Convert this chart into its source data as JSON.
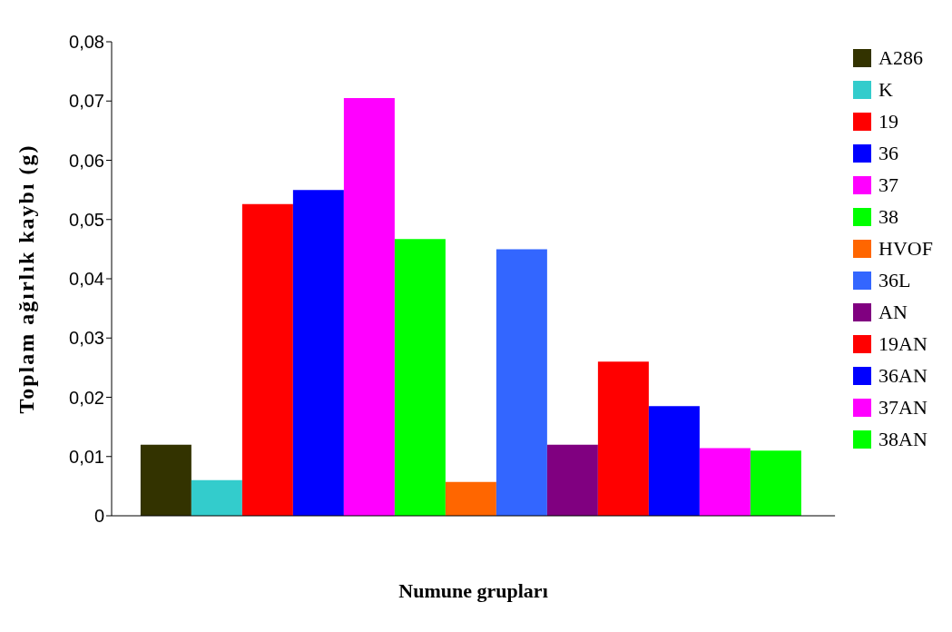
{
  "chart_data": {
    "type": "bar",
    "xlabel": "Numune grupları",
    "ylabel": "Toplam ağırlık kaybı (g)",
    "categories": [
      null
    ],
    "series": [
      {
        "name": "A286",
        "color": "#333300",
        "values": [
          0.012
        ]
      },
      {
        "name": "K",
        "color": "#33cccc",
        "values": [
          0.006
        ]
      },
      {
        "name": "19",
        "color": "#ff0000",
        "values": [
          0.0526
        ]
      },
      {
        "name": "36",
        "color": "#0000ff",
        "values": [
          0.055
        ]
      },
      {
        "name": "37",
        "color": "#ff00ff",
        "values": [
          0.0705
        ]
      },
      {
        "name": "38",
        "color": "#00ff00",
        "values": [
          0.0467
        ]
      },
      {
        "name": "HVOF",
        "color": "#ff6600",
        "values": [
          0.0057
        ]
      },
      {
        "name": "36L",
        "color": "#3366ff",
        "values": [
          0.045
        ]
      },
      {
        "name": "AN",
        "color": "#800080",
        "values": [
          0.012
        ]
      },
      {
        "name": "19AN",
        "color": "#ff0000",
        "values": [
          0.026
        ]
      },
      {
        "name": "36AN",
        "color": "#0000ff",
        "values": [
          0.0185
        ]
      },
      {
        "name": "37AN",
        "color": "#ff00ff",
        "values": [
          0.0114
        ]
      },
      {
        "name": "38AN",
        "color": "#00ff00",
        "values": [
          0.011
        ]
      }
    ],
    "ylim": [
      0,
      0.08
    ],
    "yticks": [
      0,
      {
        "value": 0.01,
        "label": "0,01"
      },
      {
        "value": 0.02,
        "label": "0,02"
      },
      {
        "value": 0.03,
        "label": "0,03"
      },
      {
        "value": 0.04,
        "label": "0,04"
      },
      {
        "value": 0.05,
        "label": "0,05"
      },
      {
        "value": 0.06,
        "label": "0,06"
      },
      {
        "value": 0.07,
        "label": "0,07"
      },
      {
        "value": 0.08,
        "label": "0,08"
      }
    ],
    "grid": false,
    "legend": "right"
  }
}
